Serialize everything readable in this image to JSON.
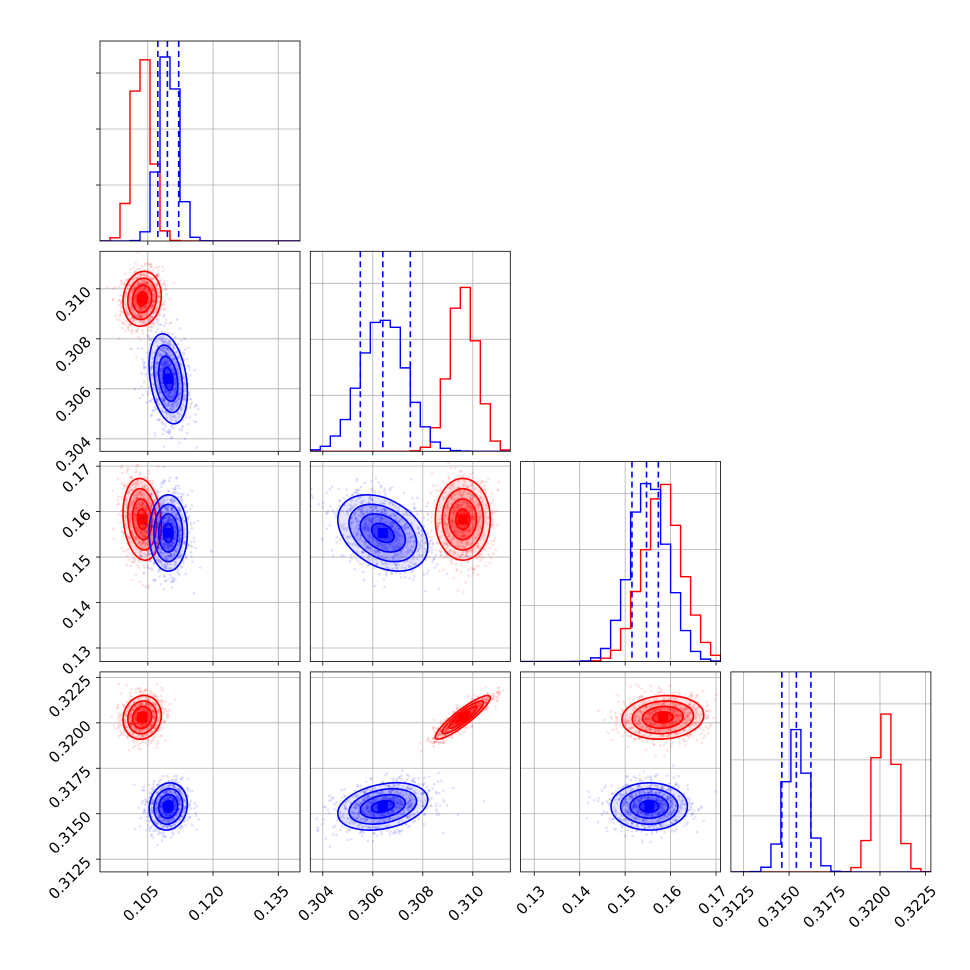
{
  "chart_data": {
    "type": "corner",
    "parameters": [
      {
        "xlim": [
          0.094,
          0.14
        ],
        "xticks": [
          0.105,
          0.12,
          0.135
        ],
        "tick_labels": [
          "0.105",
          "0.120",
          "0.135"
        ]
      },
      {
        "xlim": [
          0.3035,
          0.3115
        ],
        "xticks": [
          0.304,
          0.306,
          0.308,
          0.31
        ],
        "tick_labels": [
          "0.304",
          "0.306",
          "0.308",
          "0.310"
        ]
      },
      {
        "xlim": [
          0.127,
          0.171
        ],
        "xticks": [
          0.13,
          0.14,
          0.15,
          0.16,
          0.17
        ],
        "tick_labels": [
          "0.13",
          "0.14",
          "0.15",
          "0.16",
          "0.17"
        ]
      },
      {
        "xlim": [
          0.3118,
          0.3228
        ],
        "xticks": [
          0.3125,
          0.315,
          0.3175,
          0.32,
          0.3225
        ],
        "tick_labels": [
          "0.3125",
          "0.3150",
          "0.3175",
          "0.3200",
          "0.3225"
        ]
      }
    ],
    "series": [
      {
        "color": "#ff0000",
        "means": [
          0.1037,
          0.3096,
          0.1583,
          0.3203
        ],
        "sds": [
          0.0022,
          0.00055,
          0.0045,
          0.0006
        ],
        "correlation": [
          [
            1,
            0.1,
            -0.15,
            0.1
          ],
          [
            0.1,
            1,
            0.0,
            0.9
          ],
          [
            -0.15,
            0.0,
            1,
            0.1
          ],
          [
            0.1,
            0.9,
            0.1,
            1
          ]
        ],
        "hist_peaks": [
          1.0,
          0.92,
          0.9,
          0.9
        ],
        "quantiles": []
      },
      {
        "color": "#0000ff",
        "means": [
          0.1097,
          0.3064,
          0.1553,
          0.3154
        ],
        "sds": [
          0.0022,
          0.0009,
          0.0042,
          0.00065
        ],
        "correlation": [
          [
            1,
            -0.3,
            0.0,
            0.1
          ],
          [
            -0.3,
            1,
            -0.35,
            0.3
          ],
          [
            0.0,
            -0.35,
            1,
            0.0
          ],
          [
            0.1,
            0.3,
            0.0,
            1
          ]
        ],
        "hist_peaks": [
          1.0,
          0.75,
          1.0,
          0.72
        ],
        "quantiles": [
          [
            0.1073,
            0.1095,
            0.1121
          ],
          [
            0.3055,
            0.3064,
            0.3075
          ],
          [
            0.1515,
            0.1547,
            0.1573
          ],
          [
            0.3146,
            0.3154,
            0.3162
          ]
        ]
      }
    ],
    "grid": true,
    "contour_levels": 4,
    "title": "",
    "legend": ""
  }
}
